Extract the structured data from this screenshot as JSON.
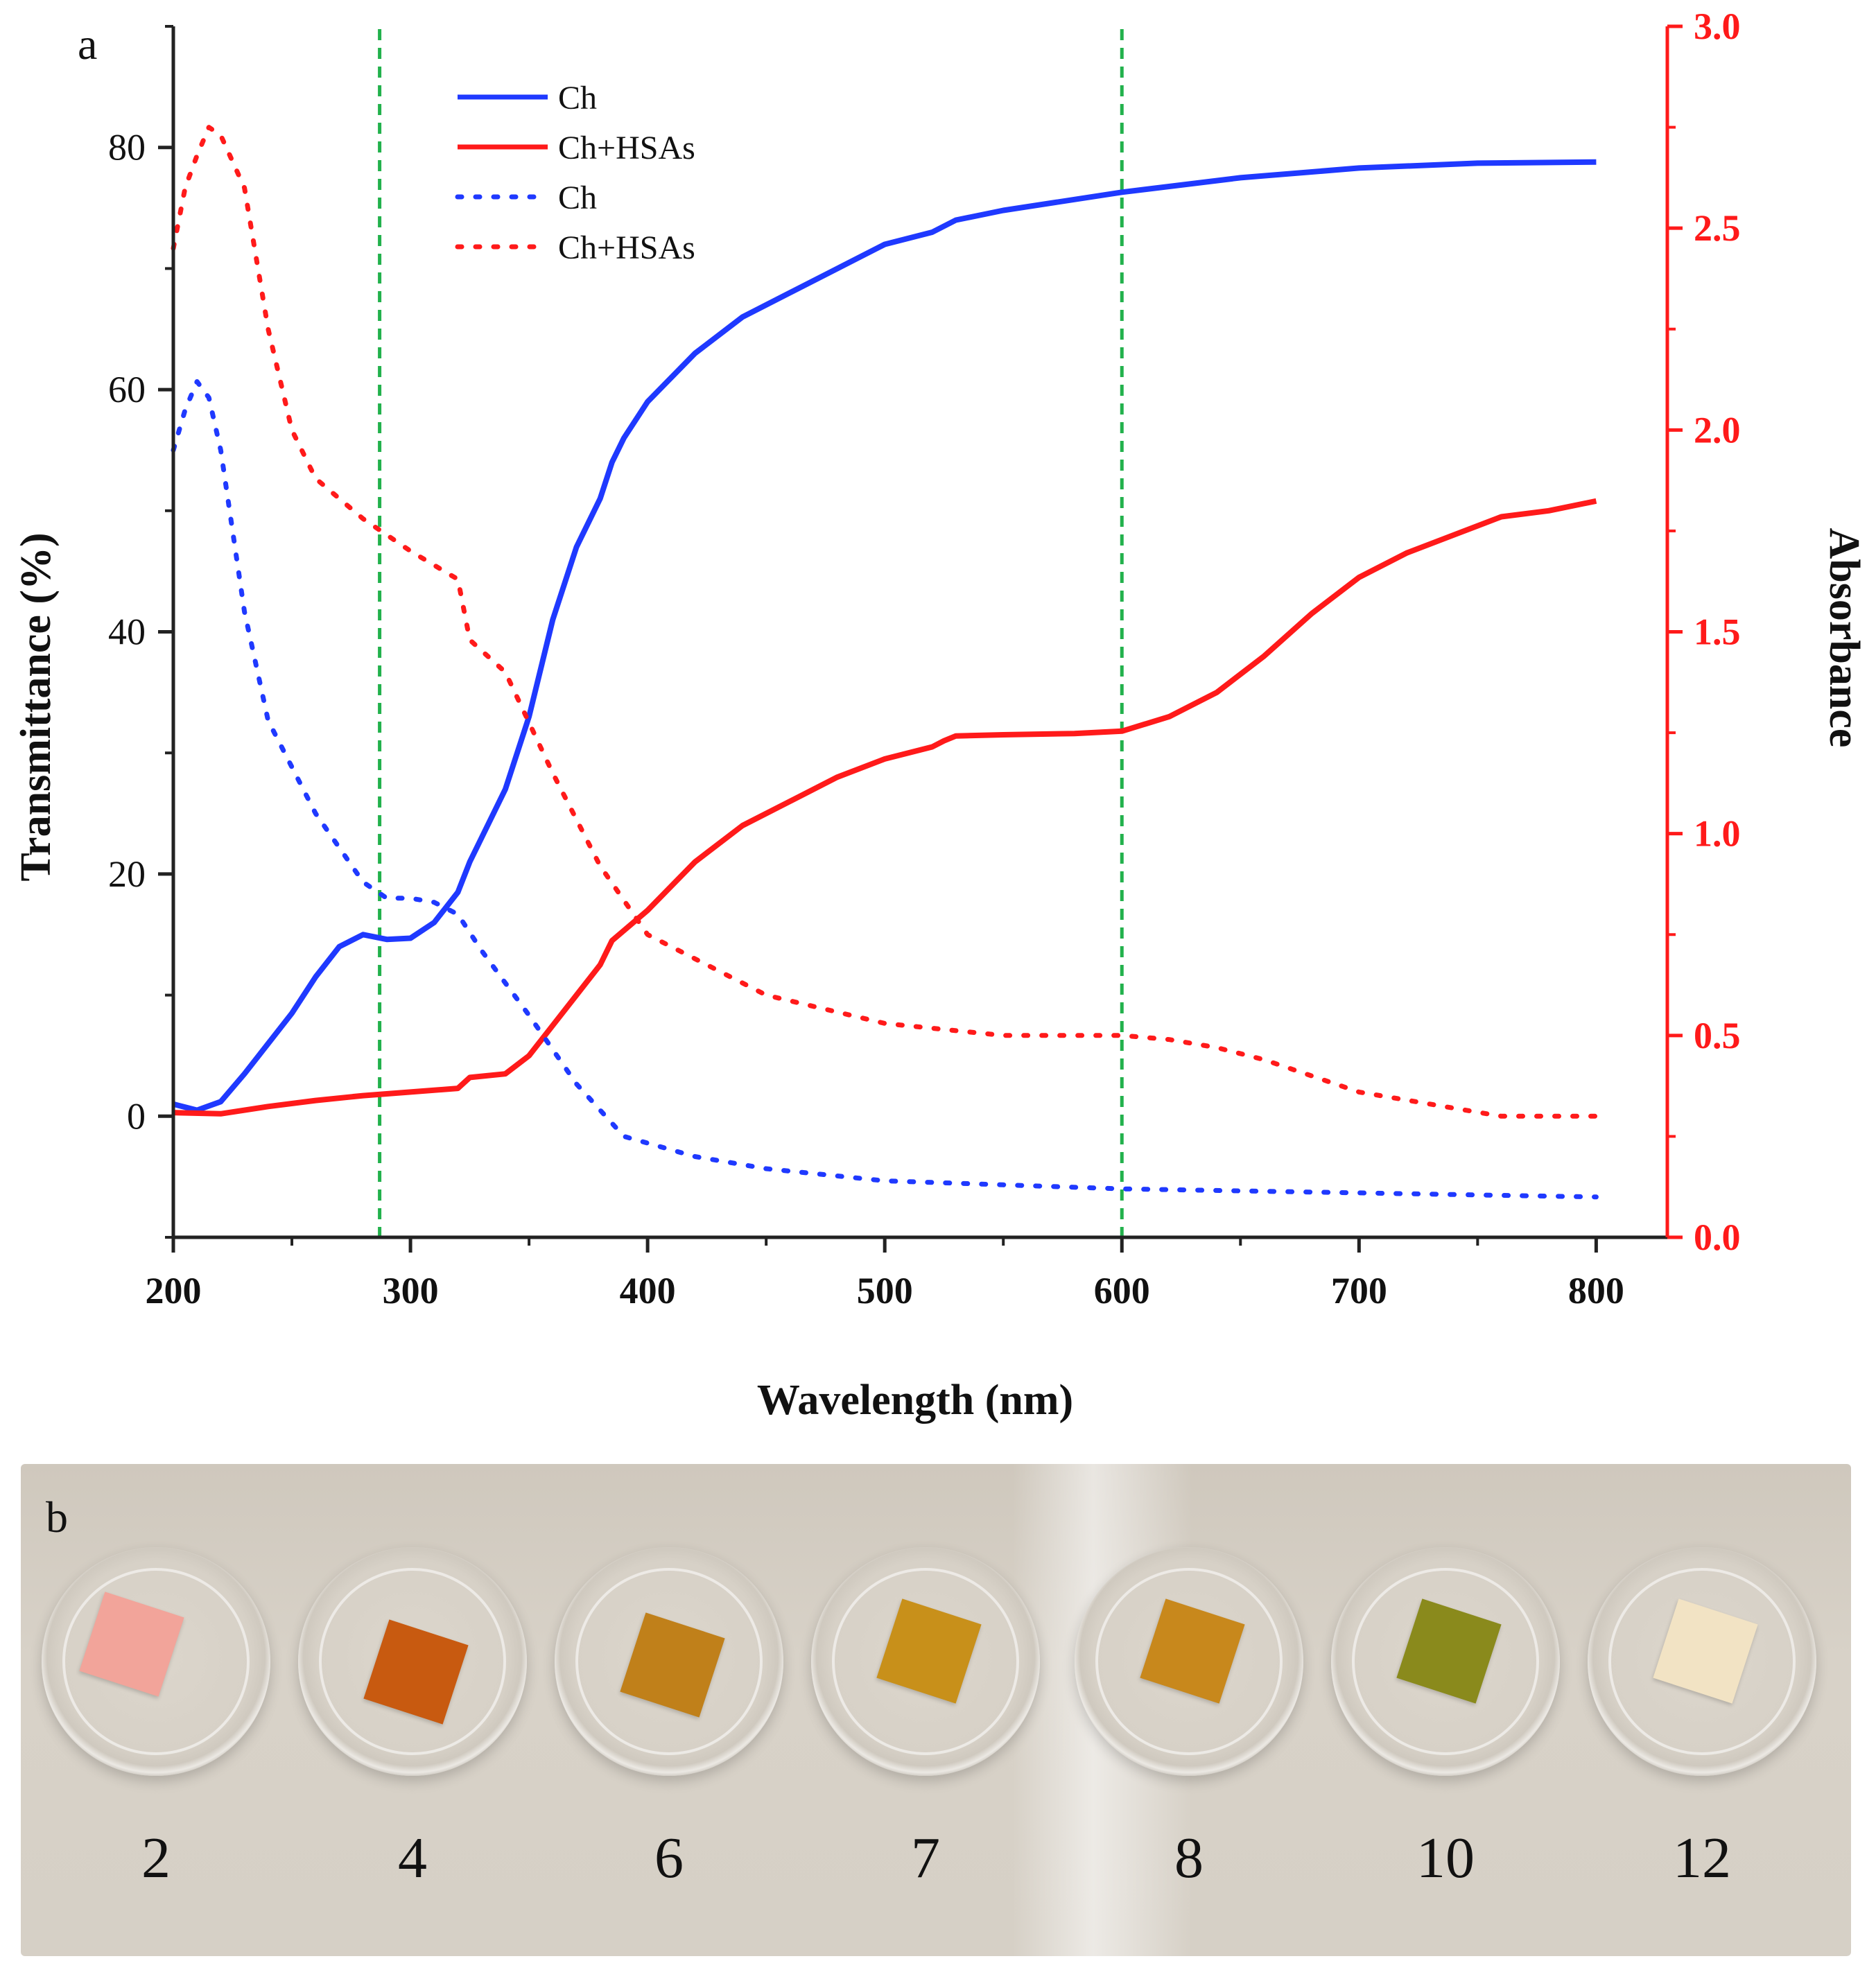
{
  "panel_a": {
    "letter": "a"
  },
  "panel_b": {
    "letter": "b",
    "samples": [
      {
        "label": "2",
        "film_color": "#f2a49a"
      },
      {
        "label": "4",
        "film_color": "#c85a10"
      },
      {
        "label": "6",
        "film_color": "#c0801a"
      },
      {
        "label": "7",
        "film_color": "#c8901a"
      },
      {
        "label": "8",
        "film_color": "#c8881c"
      },
      {
        "label": "10",
        "film_color": "#8a8a1c"
      },
      {
        "label": "12",
        "film_color": "#f2e3c4"
      }
    ]
  },
  "chart_data": {
    "type": "line",
    "xlabel": "Wavelength (nm)",
    "ylabel": "Transmittance (%)",
    "y2label": "Absorbance",
    "xlim": [
      200,
      830
    ],
    "ylim": [
      -10,
      90
    ],
    "y2lim": [
      0,
      3
    ],
    "xticks": [
      "200",
      "300",
      "400",
      "500",
      "600",
      "700",
      "800"
    ],
    "yticks": [
      "0",
      "20",
      "40",
      "60",
      "80"
    ],
    "y2ticks": [
      "0.0",
      "0.5",
      "1.0",
      "1.5",
      "2.0",
      "2.5",
      "3.0"
    ],
    "reference_lines_x": [
      287,
      600
    ],
    "colors": {
      "blue": "#1f39ff",
      "red": "#ff1a1a",
      "green": "#22b14c"
    },
    "legend": {
      "position": "top-center",
      "entries": [
        {
          "label": "Ch",
          "color": "#1f39ff",
          "style": "solid"
        },
        {
          "label": "Ch+HSAs",
          "color": "#ff1a1a",
          "style": "solid"
        },
        {
          "label": "Ch",
          "color": "#1f39ff",
          "style": "dotted"
        },
        {
          "label": "Ch+HSAs",
          "color": "#ff1a1a",
          "style": "dotted"
        }
      ]
    },
    "series": [
      {
        "name": "Ch",
        "axis": "left",
        "style": "solid",
        "color": "#1f39ff",
        "x": [
          200,
          210,
          220,
          230,
          240,
          250,
          260,
          270,
          280,
          290,
          300,
          310,
          320,
          325,
          330,
          340,
          350,
          360,
          370,
          380,
          385,
          390,
          400,
          420,
          440,
          460,
          480,
          500,
          520,
          530,
          550,
          600,
          650,
          700,
          750,
          800
        ],
        "y": [
          1,
          0.5,
          1.2,
          3.5,
          6,
          8.5,
          11.5,
          14,
          15,
          14.6,
          14.7,
          16,
          18.5,
          21,
          23,
          27,
          33,
          41,
          47,
          51,
          54,
          56,
          59,
          63,
          66,
          68,
          70,
          72,
          73,
          74,
          74.8,
          76.3,
          77.5,
          78.3,
          78.7,
          78.8
        ]
      },
      {
        "name": "Ch+HSAs",
        "axis": "left",
        "style": "solid",
        "color": "#ff1a1a",
        "x": [
          200,
          220,
          240,
          260,
          280,
          300,
          320,
          325,
          340,
          350,
          360,
          370,
          380,
          385,
          400,
          420,
          440,
          460,
          480,
          500,
          520,
          525,
          530,
          550,
          580,
          600,
          620,
          640,
          660,
          680,
          700,
          720,
          740,
          760,
          780,
          800
        ],
        "y": [
          0.3,
          0.2,
          0.8,
          1.3,
          1.7,
          2,
          2.3,
          3.2,
          3.5,
          5,
          7.5,
          10,
          12.5,
          14.5,
          17,
          21,
          24,
          26,
          28,
          29.5,
          30.5,
          31,
          31.4,
          31.5,
          31.6,
          31.8,
          33,
          35,
          38,
          41.5,
          44.5,
          46.5,
          48,
          49.5,
          50,
          50.8
        ]
      },
      {
        "name": "Ch",
        "axis": "right",
        "style": "dotted",
        "color": "#1f39ff",
        "x": [
          200,
          205,
          210,
          215,
          220,
          230,
          240,
          260,
          280,
          290,
          300,
          310,
          320,
          330,
          350,
          370,
          390,
          420,
          450,
          500,
          550,
          600,
          650,
          700,
          750,
          800
        ],
        "y": [
          1.95,
          2.05,
          2.12,
          2.08,
          1.95,
          1.55,
          1.28,
          1.05,
          0.88,
          0.84,
          0.84,
          0.83,
          0.8,
          0.71,
          0.55,
          0.38,
          0.25,
          0.2,
          0.17,
          0.14,
          0.13,
          0.12,
          0.115,
          0.11,
          0.105,
          0.1
        ]
      },
      {
        "name": "Ch+HSAs",
        "axis": "right",
        "style": "dotted",
        "color": "#ff1a1a",
        "x": [
          200,
          205,
          210,
          215,
          220,
          230,
          240,
          250,
          260,
          280,
          300,
          320,
          325,
          340,
          360,
          380,
          400,
          450,
          500,
          550,
          600,
          620,
          640,
          660,
          680,
          700,
          720,
          740,
          760,
          780,
          800
        ],
        "y": [
          2.45,
          2.6,
          2.68,
          2.75,
          2.73,
          2.6,
          2.25,
          2.0,
          1.88,
          1.78,
          1.7,
          1.63,
          1.48,
          1.4,
          1.15,
          0.92,
          0.75,
          0.6,
          0.53,
          0.5,
          0.5,
          0.49,
          0.47,
          0.44,
          0.4,
          0.36,
          0.34,
          0.32,
          0.3,
          0.3,
          0.3
        ]
      }
    ]
  }
}
